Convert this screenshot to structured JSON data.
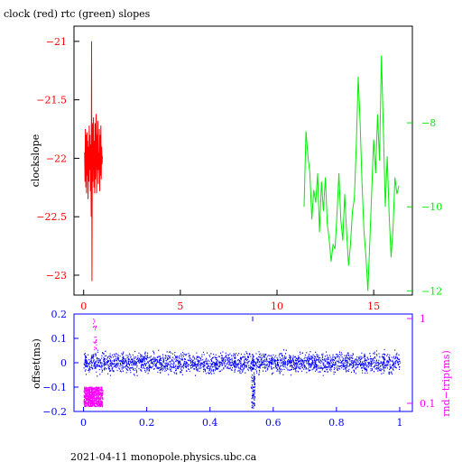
{
  "header": {
    "title": "clock (red) rtc (green) slopes"
  },
  "footer": {
    "text": "2021-04-11 monopole.physics.ubc.ca"
  },
  "colors": {
    "red": "#ff0000",
    "green": "#00ee00",
    "blue": "#0000ff",
    "magenta": "#ff00ff",
    "black": "#000000"
  },
  "chart_data": [
    {
      "type": "line",
      "title": "clock (red) rtc (green) slopes",
      "xlim": [
        -0.5,
        17
      ],
      "xticks": [
        0,
        5,
        10,
        15
      ],
      "ylabel": "clockslope",
      "ylim": [
        -23.17,
        -20.87
      ],
      "yticks": [
        -21,
        -21.5,
        -22,
        -22.5,
        -23
      ],
      "ylabel_right": "",
      "ylim_right": [
        -12.1,
        -5.7
      ],
      "yticks_right": [
        -8,
        -10,
        -12
      ],
      "series": [
        {
          "name": "clock",
          "color": "#ff0000",
          "x": [
            0.05,
            0.07,
            0.09,
            0.11,
            0.13,
            0.15,
            0.17,
            0.19,
            0.21,
            0.23,
            0.25,
            0.27,
            0.29,
            0.31,
            0.33,
            0.35,
            0.37,
            0.39,
            0.41,
            0.43,
            0.45,
            0.47,
            0.49,
            0.51,
            0.53,
            0.55,
            0.57,
            0.59,
            0.61,
            0.63,
            0.65,
            0.67,
            0.69,
            0.71,
            0.73,
            0.75,
            0.77,
            0.79,
            0.81,
            0.83,
            0.85,
            0.87,
            0.89,
            0.91,
            0.93,
            0.95,
            0.97
          ],
          "y": [
            -21.95,
            -22.2,
            -21.75,
            -22.25,
            -21.8,
            -22.3,
            -21.78,
            -22.15,
            -21.85,
            -22.35,
            -21.9,
            -22.2,
            -21.72,
            -22.1,
            -21.8,
            -22.28,
            -21.88,
            -22.5,
            -21.0,
            -23.05,
            -21.7,
            -22.2,
            -21.9,
            -21.65,
            -22.25,
            -21.85,
            -22.3,
            -21.7,
            -22.18,
            -21.82,
            -21.62,
            -22.3,
            -21.8,
            -22.1,
            -21.68,
            -22.22,
            -21.95,
            -22.1,
            -21.75,
            -22.28,
            -21.8,
            -22.15,
            -21.72,
            -22.18,
            -21.9,
            -22.05,
            -21.98
          ]
        },
        {
          "name": "rtc",
          "color": "#00ee00",
          "axis": "right",
          "x": [
            11.4,
            11.5,
            11.6,
            11.7,
            11.8,
            11.9,
            12.0,
            12.1,
            12.2,
            12.3,
            12.4,
            12.5,
            12.6,
            12.7,
            12.8,
            12.9,
            13.0,
            13.1,
            13.2,
            13.3,
            13.4,
            13.5,
            13.6,
            13.7,
            13.8,
            13.9,
            14.0,
            14.1,
            14.2,
            14.3,
            14.4,
            14.5,
            14.6,
            14.7,
            14.8,
            14.9,
            15.0,
            15.1,
            15.2,
            15.3,
            15.4,
            15.5,
            15.6,
            15.7,
            15.8,
            15.9,
            16.0,
            16.1,
            16.2,
            16.3
          ],
          "y": [
            -10.0,
            -8.2,
            -8.8,
            -9.2,
            -10.3,
            -9.6,
            -9.9,
            -9.2,
            -10.6,
            -9.4,
            -10.1,
            -9.3,
            -10.4,
            -10.8,
            -11.3,
            -10.9,
            -11.0,
            -10.2,
            -9.2,
            -10.3,
            -10.8,
            -9.7,
            -10.6,
            -11.4,
            -10.9,
            -10.1,
            -9.8,
            -8.5,
            -6.9,
            -8.0,
            -9.5,
            -10.6,
            -11.2,
            -12.0,
            -10.8,
            -9.6,
            -8.4,
            -9.2,
            -7.8,
            -8.9,
            -6.4,
            -8.2,
            -10.0,
            -8.8,
            -10.2,
            -11.2,
            -10.5,
            -9.3,
            -9.7,
            -9.5
          ]
        }
      ]
    },
    {
      "type": "scatter",
      "xlim": [
        -0.03,
        1.04
      ],
      "xticks": [
        "0",
        "0.2",
        "0.4",
        "0.6",
        "0.8",
        "1"
      ],
      "ylabel": "offset(ms)",
      "ylim": [
        -0.2,
        0.2
      ],
      "yticks": [
        "0.2",
        "0.1",
        "0",
        "−0.1",
        "−0.2"
      ],
      "ylabel_right": "rnd−trip(ms)",
      "yscale_right": "log",
      "yticks_right": [
        "1",
        "0.1"
      ],
      "series": [
        {
          "name": "offset",
          "color": "#0000ff",
          "x_range": [
            0,
            1
          ],
          "y_center": 0,
          "y_spread": 0.03
        },
        {
          "name": "rnd-trip",
          "color": "#ff00ff",
          "x_range": [
            0,
            0.06
          ],
          "y_center": 0.14,
          "y_spread": 0.04
        }
      ],
      "annotations": [
        {
          "x": 0.535,
          "y_min": -0.2,
          "y_max": 0.19,
          "color": "#0000ff"
        }
      ]
    }
  ]
}
